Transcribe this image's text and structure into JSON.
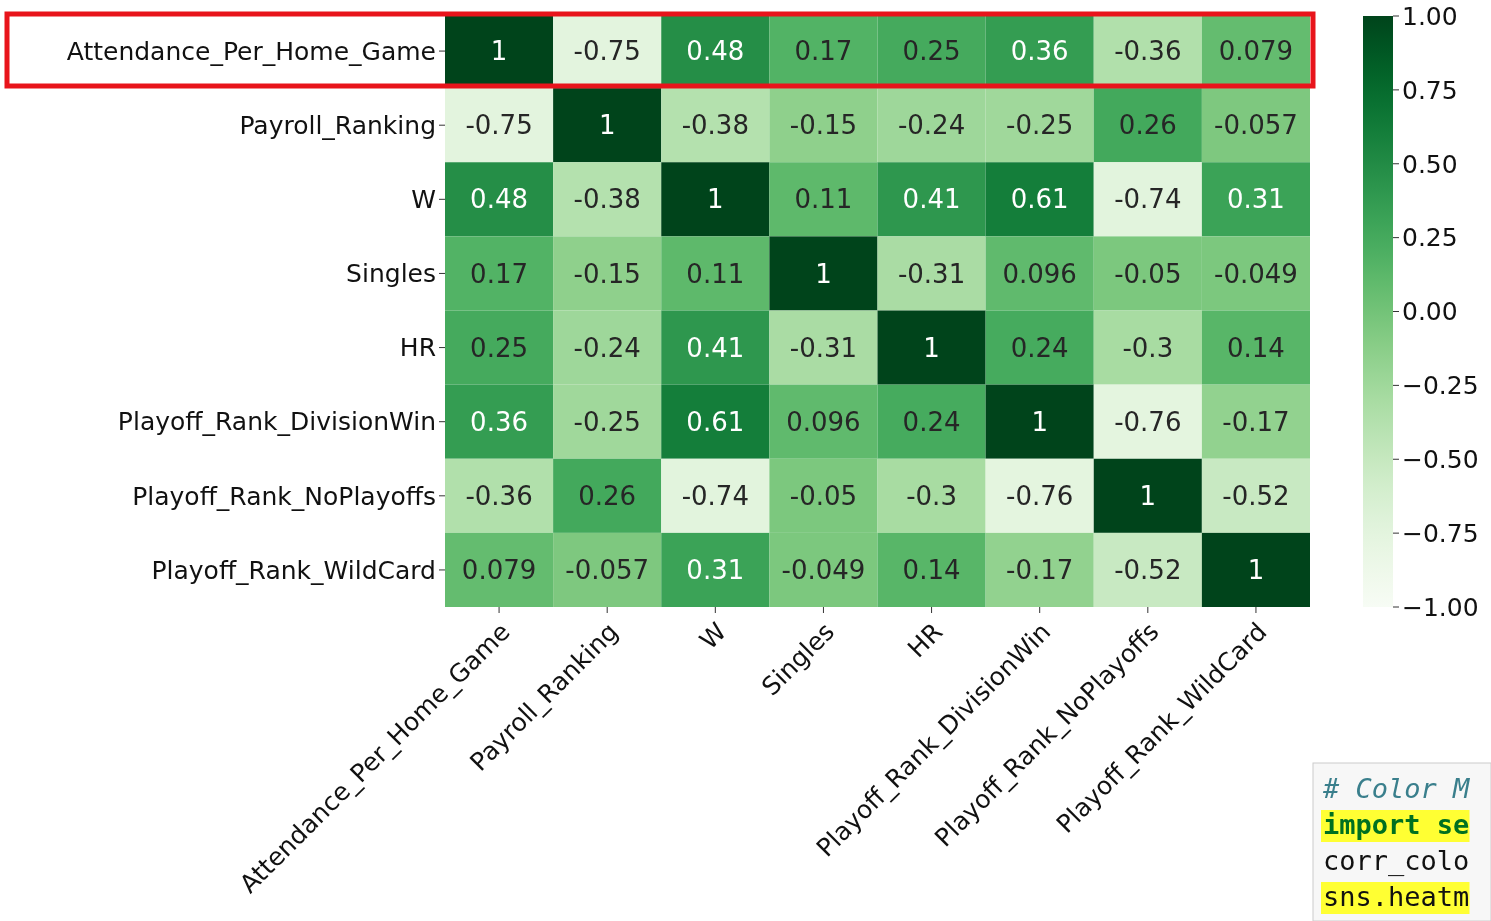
{
  "chart_data": {
    "type": "heatmap",
    "categories": [
      "Attendance_Per_Home_Game",
      "Payroll_Ranking",
      "W",
      "Singles",
      "HR",
      "Playoff_Rank_DivisionWin",
      "Playoff_Rank_NoPlayoffs",
      "Playoff_Rank_WildCard"
    ],
    "y_categories": [
      "Attendance_Per_Home_Game",
      "Payroll_Ranking",
      "W",
      "Singles",
      "HR",
      "Playoff_Rank_DivisionWin",
      "Playoff_Rank_NoPlayoffs",
      "Playoff_Rank_WildCard"
    ],
    "cells": [
      [
        1,
        -0.75,
        0.48,
        0.17,
        0.25,
        0.36,
        -0.36,
        0.079
      ],
      [
        -0.75,
        1,
        -0.38,
        -0.15,
        -0.24,
        -0.25,
        0.26,
        -0.057
      ],
      [
        0.48,
        -0.38,
        1,
        0.11,
        0.41,
        0.61,
        -0.74,
        0.31
      ],
      [
        0.17,
        -0.15,
        0.11,
        1,
        -0.31,
        0.096,
        -0.05,
        -0.049
      ],
      [
        0.25,
        -0.24,
        0.41,
        -0.31,
        1,
        0.24,
        -0.3,
        0.14
      ],
      [
        0.36,
        -0.25,
        0.61,
        0.096,
        0.24,
        1,
        -0.76,
        -0.17
      ],
      [
        -0.36,
        0.26,
        -0.74,
        -0.05,
        -0.3,
        -0.76,
        1,
        -0.52
      ],
      [
        0.079,
        -0.057,
        0.31,
        -0.049,
        0.14,
        -0.17,
        -0.52,
        1
      ]
    ],
    "data_labels": true,
    "clim": [
      -1,
      1
    ],
    "cticks": [
      {
        "value": -1,
        "label": "−1.00"
      },
      {
        "value": -0.75,
        "label": "−0.75"
      },
      {
        "value": -0.5,
        "label": "−0.50"
      },
      {
        "value": -0.25,
        "label": "−0.25"
      },
      {
        "value": 0,
        "label": "0.00"
      },
      {
        "value": 0.25,
        "label": "0.25"
      },
      {
        "value": 0.5,
        "label": "0.50"
      },
      {
        "value": 0.75,
        "label": "0.75"
      },
      {
        "value": 1,
        "label": "1.00"
      }
    ],
    "annotations": [
      "# Color M",
      "import se",
      "corr_colo",
      "sns.heatm"
    ]
  }
}
